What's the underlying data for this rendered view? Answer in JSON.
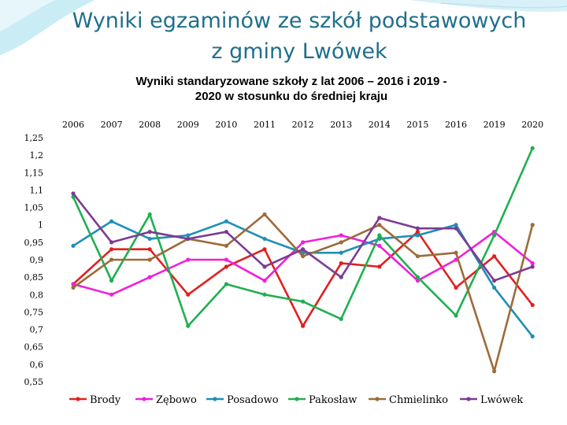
{
  "slide": {
    "title_line1": "Wyniki egzaminów ze szkół podstawowych",
    "title_line2": "z gminy Lwówek"
  },
  "chart_data": {
    "type": "line",
    "title_line1": "Wyniki  standaryzowane szkoły z lat 2006 – 2016 i 2019 -",
    "title_line2": "2020 w stosunku do średniej kraju",
    "categories": [
      "2006",
      "2007",
      "2008",
      "2009",
      "2010",
      "2011",
      "2012",
      "2013",
      "2014",
      "2015",
      "2016",
      "2019",
      "2020"
    ],
    "y_ticks": [
      "1,25",
      "1,2",
      "1,15",
      "1,1",
      "1,05",
      "1",
      "0,95",
      "0,9",
      "0,85",
      "0,8",
      "0,75",
      "0,7",
      "0,65",
      "0,6",
      "0,55"
    ],
    "ylim": [
      0.55,
      1.25
    ],
    "grid": false,
    "legend_position": "bottom",
    "series": [
      {
        "name": "Brody",
        "color": "#e0201f",
        "values": [
          0.83,
          0.93,
          0.93,
          0.8,
          0.88,
          0.93,
          0.71,
          0.89,
          0.88,
          0.98,
          0.82,
          0.91,
          0.77
        ]
      },
      {
        "name": "Zębowo",
        "color": "#f01fdc",
        "values": [
          0.83,
          0.8,
          0.85,
          0.9,
          0.9,
          0.84,
          0.95,
          0.97,
          0.94,
          0.84,
          0.9,
          0.98,
          0.89
        ]
      },
      {
        "name": "Posadowo",
        "color": "#1e8fb4",
        "values": [
          0.94,
          1.01,
          0.96,
          0.97,
          1.01,
          0.96,
          0.92,
          0.92,
          0.96,
          0.97,
          1.0,
          0.82,
          0.68
        ]
      },
      {
        "name": "Pakosław",
        "color": "#1fb050",
        "values": [
          1.08,
          0.84,
          1.03,
          0.71,
          0.83,
          0.8,
          0.78,
          0.73,
          0.97,
          0.85,
          0.74,
          0.97,
          1.22
        ]
      },
      {
        "name": "Chmielinko",
        "color": "#9c6b3a",
        "values": [
          0.82,
          0.9,
          0.9,
          0.96,
          0.94,
          1.03,
          0.91,
          0.95,
          1.0,
          0.91,
          0.92,
          0.58,
          1.0
        ]
      },
      {
        "name": "Lwówek",
        "color": "#7d3b94",
        "values": [
          1.09,
          0.95,
          0.98,
          0.96,
          0.98,
          0.88,
          0.93,
          0.85,
          1.02,
          0.99,
          0.99,
          0.84,
          0.88
        ]
      }
    ]
  }
}
